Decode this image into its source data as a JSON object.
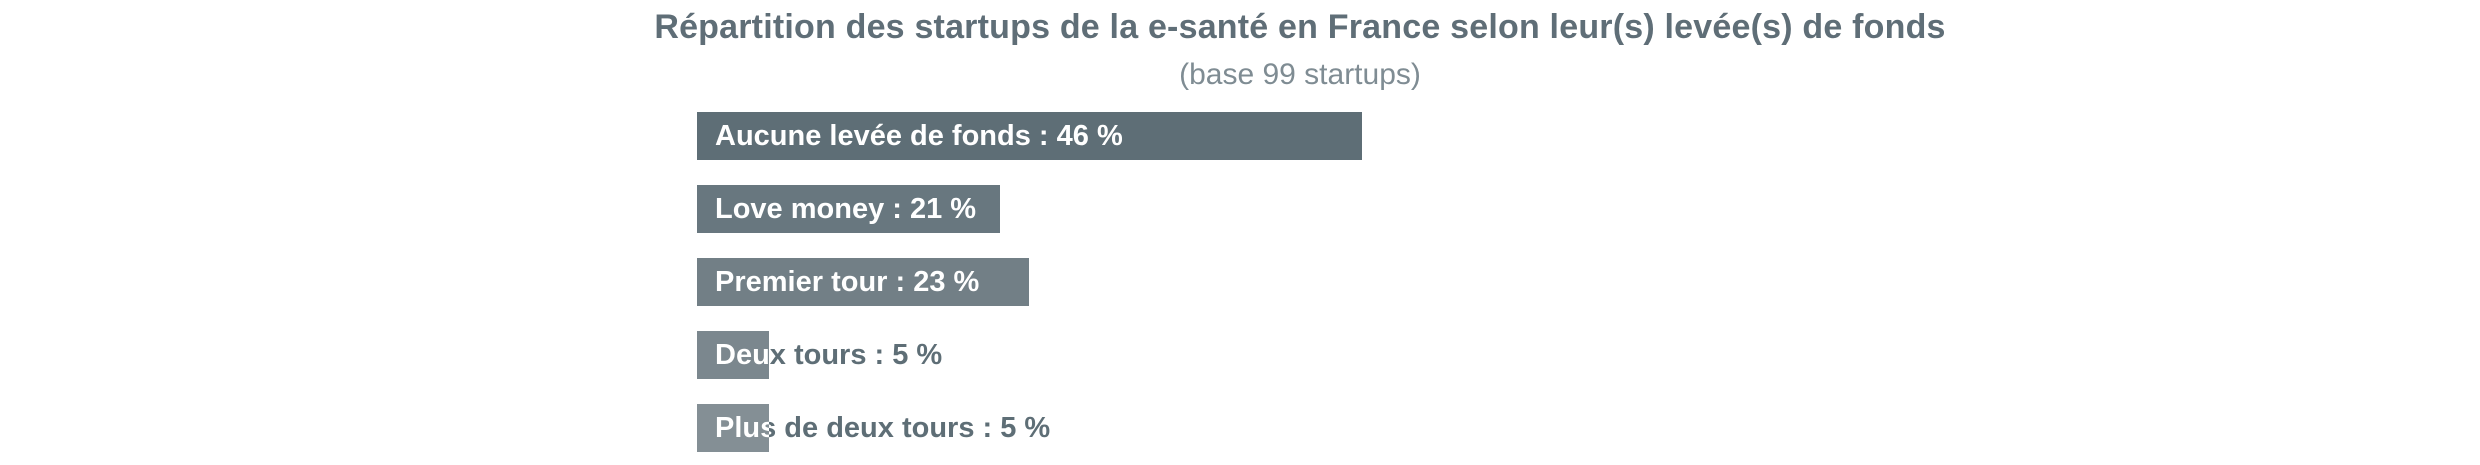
{
  "chart_data": {
    "type": "bar",
    "orientation": "horizontal",
    "title": "Répartition des startups de la e-santé en France selon leur(s) levée(s) de fonds",
    "subtitle": "(base 99 startups)",
    "xlim": [
      0,
      100
    ],
    "grid": false,
    "legend": "none",
    "bars": [
      {
        "label": "Aucune levée de fonds : 46 %",
        "value": 46,
        "color": "#5e6e76"
      },
      {
        "label": "Love money : 21 %",
        "value": 21,
        "color": "#68777f"
      },
      {
        "label": "Premier tour : 23 %",
        "value": 23,
        "color": "#727f86"
      },
      {
        "label": "Deux tours : 5 %",
        "value": 5,
        "color": "#7b878e"
      },
      {
        "label": "Plus de deux tours : 5 %",
        "value": 5,
        "color": "#848f95"
      }
    ],
    "label_color_inside": "#ffffff",
    "label_color_outside": "#5e6e76"
  }
}
